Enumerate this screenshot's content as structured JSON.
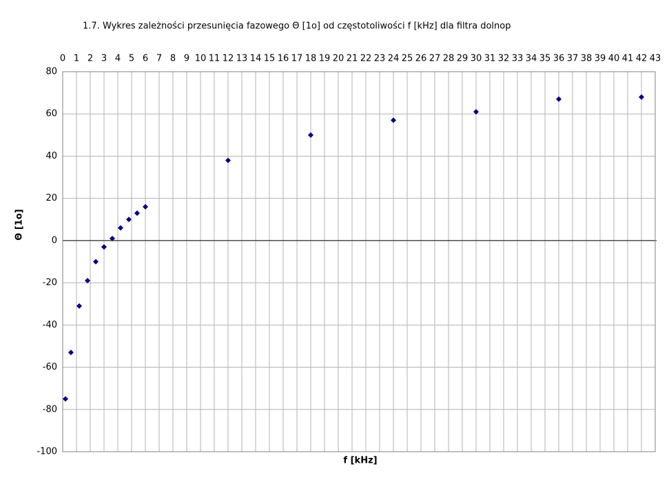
{
  "chart_data": {
    "type": "scatter",
    "title": "1.7. Wykres zależności przesunięcia fazowego Θ [1o] od częstotoliwości f [kHz] dla filtra dolnop",
    "x_label": "f [kHz]",
    "y_label": "Θ [1o]",
    "x": [
      0.2,
      0.6,
      1.2,
      1.8,
      2.4,
      3,
      3.6,
      4.2,
      4.8,
      5.4,
      6,
      12,
      18,
      24,
      30,
      36,
      42
    ],
    "values": [
      -75,
      -53,
      -31,
      -19,
      -10,
      -3,
      1,
      6,
      10,
      13,
      16,
      38,
      50,
      57,
      61,
      67,
      68
    ],
    "color": "#000080",
    "xlim": [
      0,
      43
    ],
    "xticks": [
      0,
      1,
      2,
      3,
      4,
      5,
      6,
      7,
      8,
      9,
      10,
      11,
      12,
      13,
      14,
      15,
      16,
      17,
      18,
      19,
      20,
      21,
      22,
      23,
      24,
      25,
      26,
      27,
      28,
      29,
      30,
      31,
      32,
      33,
      34,
      35,
      36,
      37,
      38,
      39,
      40,
      41,
      42,
      43
    ],
    "ylim": [
      -100,
      80
    ],
    "yticks": [
      -100,
      -80,
      -60,
      -40,
      -20,
      0,
      20,
      40,
      60,
      80
    ],
    "grid": true
  }
}
